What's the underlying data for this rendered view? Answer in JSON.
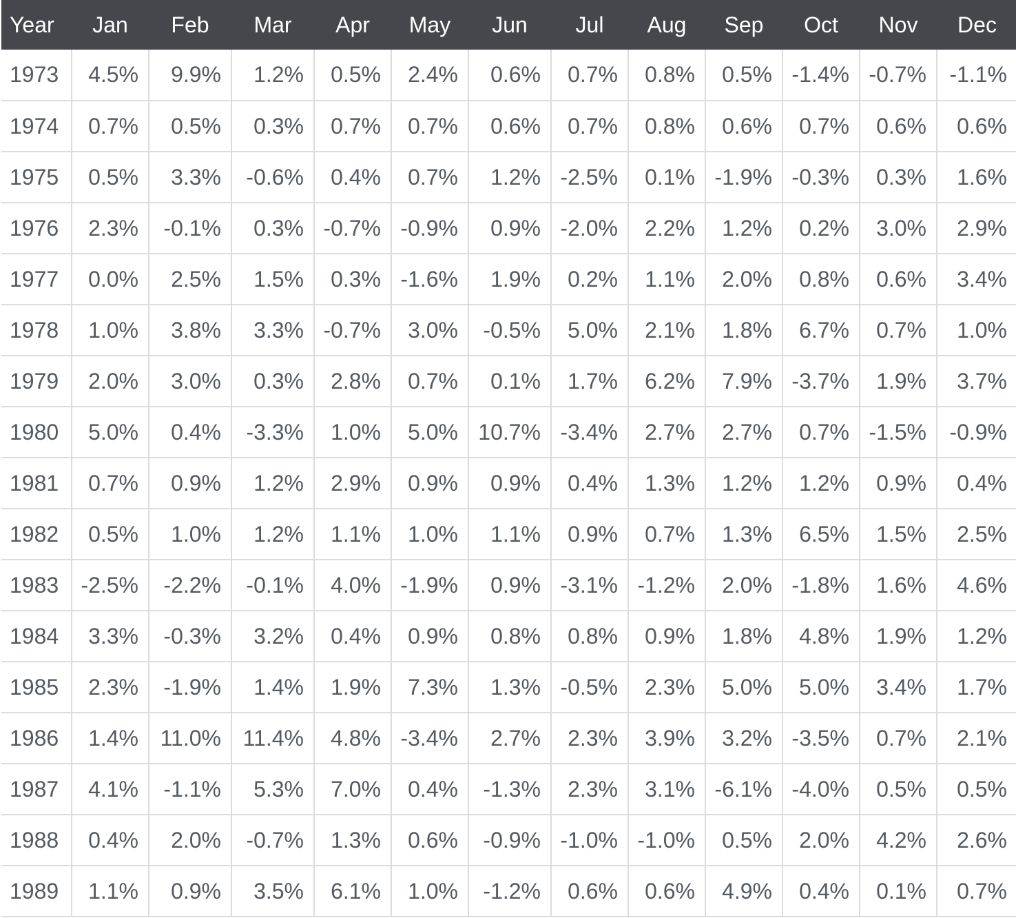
{
  "table": {
    "headers": [
      "Year",
      "Jan",
      "Feb",
      "Mar",
      "Apr",
      "May",
      "Jun",
      "Jul",
      "Aug",
      "Sep",
      "Oct",
      "Nov",
      "Dec"
    ],
    "rows": [
      [
        "1973",
        "4.5%",
        "9.9%",
        "1.2%",
        "0.5%",
        "2.4%",
        "0.6%",
        "0.7%",
        "0.8%",
        "0.5%",
        "-1.4%",
        "-0.7%",
        "-1.1%"
      ],
      [
        "1974",
        "0.7%",
        "0.5%",
        "0.3%",
        "0.7%",
        "0.7%",
        "0.6%",
        "0.7%",
        "0.8%",
        "0.6%",
        "0.7%",
        "0.6%",
        "0.6%"
      ],
      [
        "1975",
        "0.5%",
        "3.3%",
        "-0.6%",
        "0.4%",
        "0.7%",
        "1.2%",
        "-2.5%",
        "0.1%",
        "-1.9%",
        "-0.3%",
        "0.3%",
        "1.6%"
      ],
      [
        "1976",
        "2.3%",
        "-0.1%",
        "0.3%",
        "-0.7%",
        "-0.9%",
        "0.9%",
        "-2.0%",
        "2.2%",
        "1.2%",
        "0.2%",
        "3.0%",
        "2.9%"
      ],
      [
        "1977",
        "0.0%",
        "2.5%",
        "1.5%",
        "0.3%",
        "-1.6%",
        "1.9%",
        "0.2%",
        "1.1%",
        "2.0%",
        "0.8%",
        "0.6%",
        "3.4%"
      ],
      [
        "1978",
        "1.0%",
        "3.8%",
        "3.3%",
        "-0.7%",
        "3.0%",
        "-0.5%",
        "5.0%",
        "2.1%",
        "1.8%",
        "6.7%",
        "0.7%",
        "1.0%"
      ],
      [
        "1979",
        "2.0%",
        "3.0%",
        "0.3%",
        "2.8%",
        "0.7%",
        "0.1%",
        "1.7%",
        "6.2%",
        "7.9%",
        "-3.7%",
        "1.9%",
        "3.7%"
      ],
      [
        "1980",
        "5.0%",
        "0.4%",
        "-3.3%",
        "1.0%",
        "5.0%",
        "10.7%",
        "-3.4%",
        "2.7%",
        "2.7%",
        "0.7%",
        "-1.5%",
        "-0.9%"
      ],
      [
        "1981",
        "0.7%",
        "0.9%",
        "1.2%",
        "2.9%",
        "0.9%",
        "0.9%",
        "0.4%",
        "1.3%",
        "1.2%",
        "1.2%",
        "0.9%",
        "0.4%"
      ],
      [
        "1982",
        "0.5%",
        "1.0%",
        "1.2%",
        "1.1%",
        "1.0%",
        "1.1%",
        "0.9%",
        "0.7%",
        "1.3%",
        "6.5%",
        "1.5%",
        "2.5%"
      ],
      [
        "1983",
        "-2.5%",
        "-2.2%",
        "-0.1%",
        "4.0%",
        "-1.9%",
        "0.9%",
        "-3.1%",
        "-1.2%",
        "2.0%",
        "-1.8%",
        "1.6%",
        "4.6%"
      ],
      [
        "1984",
        "3.3%",
        "-0.3%",
        "3.2%",
        "0.4%",
        "0.9%",
        "0.8%",
        "0.8%",
        "0.9%",
        "1.8%",
        "4.8%",
        "1.9%",
        "1.2%"
      ],
      [
        "1985",
        "2.3%",
        "-1.9%",
        "1.4%",
        "1.9%",
        "7.3%",
        "1.3%",
        "-0.5%",
        "2.3%",
        "5.0%",
        "5.0%",
        "3.4%",
        "1.7%"
      ],
      [
        "1986",
        "1.4%",
        "11.0%",
        "11.4%",
        "4.8%",
        "-3.4%",
        "2.7%",
        "2.3%",
        "3.9%",
        "3.2%",
        "-3.5%",
        "0.7%",
        "2.1%"
      ],
      [
        "1987",
        "4.1%",
        "-1.1%",
        "5.3%",
        "7.0%",
        "0.4%",
        "-1.3%",
        "2.3%",
        "3.1%",
        "-6.1%",
        "-4.0%",
        "0.5%",
        "0.5%"
      ],
      [
        "1988",
        "0.4%",
        "2.0%",
        "-0.7%",
        "1.3%",
        "0.6%",
        "-0.9%",
        "-1.0%",
        "-1.0%",
        "0.5%",
        "2.0%",
        "4.2%",
        "2.6%"
      ],
      [
        "1989",
        "1.1%",
        "0.9%",
        "3.5%",
        "6.1%",
        "1.0%",
        "-1.2%",
        "0.6%",
        "0.6%",
        "4.9%",
        "0.4%",
        "0.1%",
        "0.7%"
      ]
    ]
  },
  "colors": {
    "header_background": "#44474c",
    "header_text": "#ffffff",
    "cell_text": "#555a60",
    "grid_line": "#dcdcdc"
  }
}
